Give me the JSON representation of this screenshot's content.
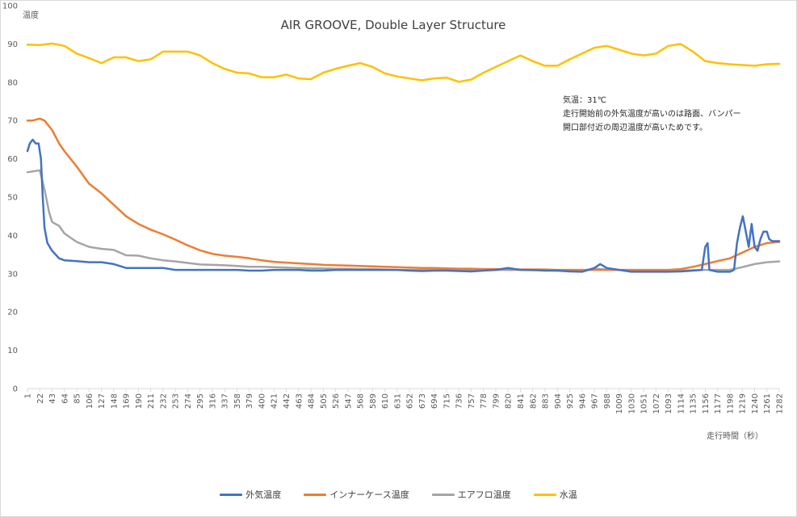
{
  "chart_data": {
    "type": "line",
    "title": "AIR GROOVE, Double Layer Structure",
    "ylabel": "温度",
    "xlabel": "走行時間（秒）",
    "ylim": [
      0,
      100
    ],
    "yticks": [
      0,
      10,
      20,
      30,
      40,
      50,
      60,
      70,
      80,
      90,
      100
    ],
    "xticks": [
      1,
      22,
      43,
      64,
      85,
      106,
      127,
      148,
      169,
      190,
      211,
      232,
      253,
      274,
      295,
      316,
      337,
      358,
      379,
      400,
      421,
      442,
      463,
      484,
      505,
      526,
      547,
      568,
      589,
      610,
      631,
      652,
      673,
      694,
      715,
      736,
      757,
      778,
      799,
      820,
      841,
      862,
      883,
      904,
      925,
      946,
      967,
      988,
      1009,
      1030,
      1051,
      1072,
      1093,
      1114,
      1135,
      1156,
      1177,
      1198,
      1219,
      1240,
      1261,
      1282
    ],
    "xlim": [
      1,
      1282
    ],
    "grid": false,
    "legend_position": "bottom",
    "annotation": [
      "気温：31℃",
      "走行開始前の外気温度が高いのは路面、バンパー",
      "開口部付近の周辺温度が高いためです。"
    ],
    "series": [
      {
        "name": "外気温度",
        "color": "#4472c4",
        "points": [
          [
            1,
            62
          ],
          [
            5,
            64
          ],
          [
            10,
            65
          ],
          [
            15,
            64
          ],
          [
            20,
            64
          ],
          [
            24,
            60
          ],
          [
            27,
            50
          ],
          [
            30,
            42
          ],
          [
            35,
            38
          ],
          [
            43,
            36
          ],
          [
            55,
            34
          ],
          [
            64,
            33.5
          ],
          [
            85,
            33.3
          ],
          [
            106,
            33
          ],
          [
            127,
            33
          ],
          [
            148,
            32.5
          ],
          [
            169,
            31.5
          ],
          [
            190,
            31.5
          ],
          [
            211,
            31.5
          ],
          [
            232,
            31.5
          ],
          [
            253,
            31
          ],
          [
            274,
            31
          ],
          [
            295,
            31
          ],
          [
            316,
            31
          ],
          [
            337,
            31
          ],
          [
            358,
            31
          ],
          [
            379,
            30.8
          ],
          [
            400,
            30.8
          ],
          [
            421,
            31
          ],
          [
            442,
            31
          ],
          [
            463,
            31
          ],
          [
            484,
            30.8
          ],
          [
            505,
            30.8
          ],
          [
            526,
            31
          ],
          [
            547,
            31
          ],
          [
            568,
            31
          ],
          [
            589,
            31
          ],
          [
            610,
            31
          ],
          [
            631,
            31
          ],
          [
            652,
            30.8
          ],
          [
            673,
            30.7
          ],
          [
            694,
            30.8
          ],
          [
            715,
            30.8
          ],
          [
            736,
            30.7
          ],
          [
            757,
            30.6
          ],
          [
            778,
            30.8
          ],
          [
            799,
            31
          ],
          [
            820,
            31.5
          ],
          [
            841,
            31
          ],
          [
            862,
            31
          ],
          [
            883,
            30.8
          ],
          [
            904,
            30.8
          ],
          [
            925,
            30.6
          ],
          [
            946,
            30.5
          ],
          [
            957,
            31
          ],
          [
            967,
            31.5
          ],
          [
            977,
            32.5
          ],
          [
            988,
            31.5
          ],
          [
            1009,
            31
          ],
          [
            1030,
            30.5
          ],
          [
            1051,
            30.5
          ],
          [
            1072,
            30.5
          ],
          [
            1093,
            30.5
          ],
          [
            1114,
            30.6
          ],
          [
            1135,
            30.8
          ],
          [
            1150,
            31
          ],
          [
            1156,
            37
          ],
          [
            1160,
            38
          ],
          [
            1163,
            31
          ],
          [
            1177,
            30.5
          ],
          [
            1198,
            30.5
          ],
          [
            1205,
            31
          ],
          [
            1210,
            38
          ],
          [
            1215,
            42
          ],
          [
            1220,
            45
          ],
          [
            1225,
            41
          ],
          [
            1230,
            37
          ],
          [
            1235,
            43
          ],
          [
            1240,
            37
          ],
          [
            1245,
            36
          ],
          [
            1250,
            39
          ],
          [
            1255,
            41
          ],
          [
            1261,
            41
          ],
          [
            1265,
            39
          ],
          [
            1270,
            38.5
          ],
          [
            1282,
            38.5
          ]
        ]
      },
      {
        "name": "インナーケース温度",
        "color": "#ed7d31",
        "points": [
          [
            1,
            70
          ],
          [
            10,
            70
          ],
          [
            22,
            70.5
          ],
          [
            30,
            70
          ],
          [
            43,
            67.5
          ],
          [
            55,
            64
          ],
          [
            64,
            62
          ],
          [
            85,
            58
          ],
          [
            106,
            53.5
          ],
          [
            127,
            51
          ],
          [
            148,
            48
          ],
          [
            169,
            45
          ],
          [
            190,
            43
          ],
          [
            211,
            41.5
          ],
          [
            232,
            40.3
          ],
          [
            253,
            38.9
          ],
          [
            274,
            37.4
          ],
          [
            295,
            36.1
          ],
          [
            316,
            35.2
          ],
          [
            337,
            34.7
          ],
          [
            358,
            34.4
          ],
          [
            379,
            34
          ],
          [
            400,
            33.5
          ],
          [
            421,
            33.1
          ],
          [
            442,
            32.9
          ],
          [
            463,
            32.7
          ],
          [
            484,
            32.5
          ],
          [
            505,
            32.3
          ],
          [
            526,
            32.2
          ],
          [
            547,
            32.1
          ],
          [
            568,
            32
          ],
          [
            589,
            31.9
          ],
          [
            610,
            31.8
          ],
          [
            631,
            31.7
          ],
          [
            652,
            31.6
          ],
          [
            673,
            31.5
          ],
          [
            694,
            31.5
          ],
          [
            715,
            31.4
          ],
          [
            736,
            31.3
          ],
          [
            757,
            31.3
          ],
          [
            778,
            31.2
          ],
          [
            799,
            31.2
          ],
          [
            820,
            31.2
          ],
          [
            841,
            31.1
          ],
          [
            862,
            31.1
          ],
          [
            883,
            31.1
          ],
          [
            904,
            31
          ],
          [
            925,
            31
          ],
          [
            946,
            31
          ],
          [
            967,
            31
          ],
          [
            988,
            31
          ],
          [
            1009,
            31
          ],
          [
            1030,
            31
          ],
          [
            1051,
            31
          ],
          [
            1072,
            31
          ],
          [
            1093,
            31
          ],
          [
            1114,
            31.2
          ],
          [
            1135,
            31.8
          ],
          [
            1156,
            32.5
          ],
          [
            1177,
            33.3
          ],
          [
            1198,
            34
          ],
          [
            1219,
            35.5
          ],
          [
            1240,
            37
          ],
          [
            1261,
            38
          ],
          [
            1282,
            38.3
          ]
        ]
      },
      {
        "name": "エアフロ温度",
        "color": "#a5a5a5",
        "points": [
          [
            1,
            56.5
          ],
          [
            10,
            56.7
          ],
          [
            22,
            57
          ],
          [
            30,
            52
          ],
          [
            38,
            46
          ],
          [
            43,
            43.5
          ],
          [
            55,
            42.5
          ],
          [
            64,
            40.5
          ],
          [
            85,
            38.3
          ],
          [
            106,
            37
          ],
          [
            127,
            36.5
          ],
          [
            148,
            36.2
          ],
          [
            169,
            34.8
          ],
          [
            190,
            34.7
          ],
          [
            211,
            34
          ],
          [
            232,
            33.5
          ],
          [
            253,
            33.2
          ],
          [
            274,
            32.8
          ],
          [
            295,
            32.4
          ],
          [
            316,
            32.3
          ],
          [
            337,
            32.2
          ],
          [
            358,
            32
          ],
          [
            379,
            31.8
          ],
          [
            400,
            31.8
          ],
          [
            421,
            31.7
          ],
          [
            442,
            31.6
          ],
          [
            463,
            31.5
          ],
          [
            484,
            31.4
          ],
          [
            505,
            31.4
          ],
          [
            526,
            31.3
          ],
          [
            547,
            31.3
          ],
          [
            568,
            31.2
          ],
          [
            589,
            31.2
          ],
          [
            610,
            31.1
          ],
          [
            631,
            31
          ],
          [
            652,
            31
          ],
          [
            673,
            31
          ],
          [
            694,
            31
          ],
          [
            715,
            31
          ],
          [
            736,
            31
          ],
          [
            757,
            31
          ],
          [
            778,
            31
          ],
          [
            799,
            31
          ],
          [
            820,
            31
          ],
          [
            841,
            31
          ],
          [
            862,
            30.9
          ],
          [
            883,
            30.9
          ],
          [
            904,
            30.8
          ],
          [
            925,
            30.8
          ],
          [
            946,
            30.8
          ],
          [
            967,
            31.3
          ],
          [
            988,
            31.1
          ],
          [
            1009,
            31
          ],
          [
            1030,
            30.9
          ],
          [
            1051,
            30.8
          ],
          [
            1072,
            30.7
          ],
          [
            1093,
            30.7
          ],
          [
            1114,
            30.8
          ],
          [
            1135,
            30.9
          ],
          [
            1156,
            31
          ],
          [
            1177,
            31
          ],
          [
            1198,
            31
          ],
          [
            1219,
            31.7
          ],
          [
            1240,
            32.5
          ],
          [
            1261,
            33
          ],
          [
            1282,
            33.2
          ]
        ]
      },
      {
        "name": "水温",
        "color": "#ffc000",
        "points": [
          [
            1,
            89.8
          ],
          [
            22,
            89.7
          ],
          [
            43,
            90.1
          ],
          [
            64,
            89.5
          ],
          [
            85,
            87.5
          ],
          [
            106,
            86.3
          ],
          [
            127,
            85
          ],
          [
            148,
            86.5
          ],
          [
            169,
            86.5
          ],
          [
            190,
            85.5
          ],
          [
            211,
            86
          ],
          [
            232,
            88
          ],
          [
            253,
            88
          ],
          [
            274,
            88
          ],
          [
            295,
            87
          ],
          [
            316,
            85
          ],
          [
            337,
            83.5
          ],
          [
            358,
            82.5
          ],
          [
            379,
            82.3
          ],
          [
            400,
            81.3
          ],
          [
            421,
            81.3
          ],
          [
            442,
            82
          ],
          [
            463,
            81
          ],
          [
            484,
            80.8
          ],
          [
            505,
            82.5
          ],
          [
            526,
            83.5
          ],
          [
            547,
            84.3
          ],
          [
            568,
            85
          ],
          [
            589,
            84
          ],
          [
            610,
            82.3
          ],
          [
            631,
            81.5
          ],
          [
            652,
            81
          ],
          [
            673,
            80.5
          ],
          [
            694,
            81
          ],
          [
            715,
            81.2
          ],
          [
            736,
            80.1
          ],
          [
            757,
            80.7
          ],
          [
            778,
            82.5
          ],
          [
            799,
            84
          ],
          [
            820,
            85.5
          ],
          [
            841,
            87
          ],
          [
            862,
            85.5
          ],
          [
            883,
            84.3
          ],
          [
            904,
            84.3
          ],
          [
            925,
            86
          ],
          [
            946,
            87.5
          ],
          [
            967,
            89
          ],
          [
            988,
            89.5
          ],
          [
            1009,
            88.5
          ],
          [
            1030,
            87.5
          ],
          [
            1051,
            87
          ],
          [
            1072,
            87.5
          ],
          [
            1093,
            89.5
          ],
          [
            1114,
            90
          ],
          [
            1135,
            88
          ],
          [
            1156,
            85.5
          ],
          [
            1177,
            85
          ],
          [
            1198,
            84.7
          ],
          [
            1219,
            84.5
          ],
          [
            1240,
            84.3
          ],
          [
            1261,
            84.7
          ],
          [
            1282,
            84.8
          ]
        ]
      }
    ]
  }
}
